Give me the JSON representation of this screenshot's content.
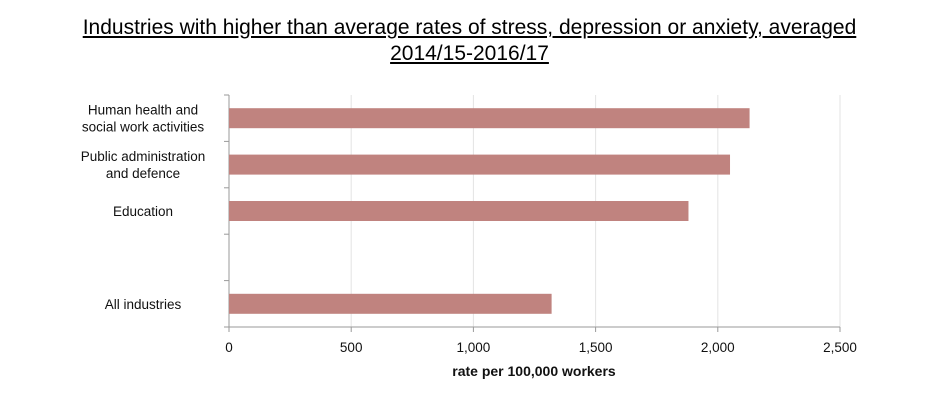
{
  "chart_data": {
    "type": "bar",
    "orientation": "horizontal",
    "title": "Industries with higher than average rates of stress, depression or anxiety, averaged 2014/15-2016/17",
    "title_lines": [
      "Industries with higher than average rates of stress, depression or anxiety, averaged",
      "2014/15-2016/17"
    ],
    "categories": [
      {
        "label": "Human health and social work activities",
        "lines": [
          "Human health and",
          "social work activities"
        ],
        "value": 2130
      },
      {
        "label": "Public administration and defence",
        "lines": [
          "Public administration",
          "and defence"
        ],
        "value": 2050
      },
      {
        "label": "Education",
        "lines": [
          "Education"
        ],
        "value": 1880
      },
      {
        "label": "",
        "lines": [],
        "value": null
      },
      {
        "label": "All industries",
        "lines": [
          "All industries"
        ],
        "value": 1320
      }
    ],
    "xlabel": "rate per 100,000 workers",
    "xlim": [
      0,
      2500
    ],
    "xticks": [
      0,
      500,
      1000,
      1500,
      2000,
      2500
    ],
    "xtick_labels": [
      "0",
      "500",
      "1,000",
      "1,500",
      "2,000",
      "2,500"
    ],
    "grid": "vertical",
    "bar_color": "#c0837f",
    "grid_color": "#e3e3e3",
    "axis_color": "#9a9a9a"
  }
}
